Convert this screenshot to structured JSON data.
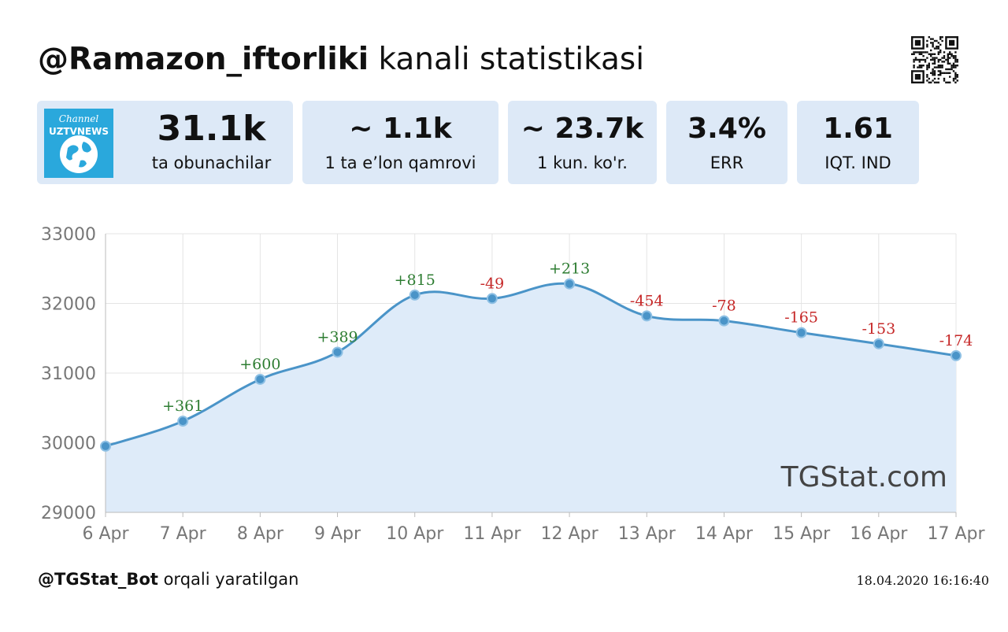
{
  "header": {
    "channel": "@Ramazon_iftorliki",
    "title_suffix": " kanali statistikasi"
  },
  "logo": {
    "line1": "Channel",
    "line2": "UZTVNEWS",
    "bg_color": "#2aa8dc"
  },
  "stats": [
    {
      "value": "31.1k",
      "label": "ta obunachilar"
    },
    {
      "value": "~ 1.1k",
      "label": "1 ta e’lon qamrovi"
    },
    {
      "value": "~ 23.7k",
      "label": "1 kun. ko'r."
    },
    {
      "value": "3.4%",
      "label": "ERR"
    },
    {
      "value": "1.61",
      "label": "IQT. IND"
    }
  ],
  "watermark": "TGStat.com",
  "chart_data": {
    "type": "area",
    "title": "",
    "xlabel": "",
    "ylabel": "",
    "categories": [
      "6 Apr",
      "7 Apr",
      "8 Apr",
      "9 Apr",
      "10 Apr",
      "11 Apr",
      "12 Apr",
      "13 Apr",
      "14 Apr",
      "15 Apr",
      "16 Apr",
      "17 Apr"
    ],
    "series": [
      {
        "values": [
          29950,
          30310,
          30910,
          31300,
          32120,
          32070,
          32280,
          31820,
          31750,
          31580,
          31420,
          31250
        ]
      }
    ],
    "annotations": [
      "",
      "+361",
      "+600",
      "+389",
      "+815",
      "-49",
      "+213",
      "-454",
      "-78",
      "-165",
      "-153",
      "-174"
    ],
    "ylim": [
      29000,
      33000
    ],
    "yticks": [
      "29000",
      "30000",
      "31000",
      "32000",
      "33000"
    ],
    "grid": true,
    "colors": {
      "line": "#4a94c8",
      "fill": "#deebf9",
      "positive": "#2e7d32",
      "negative": "#c62828",
      "grid": "#e4e4e4",
      "axis_text": "#777777"
    }
  },
  "footer": {
    "bot": "@TGStat_Bot",
    "suffix": " orqali yaratilgan",
    "timestamp": "18.04.2020 16:16:40"
  }
}
